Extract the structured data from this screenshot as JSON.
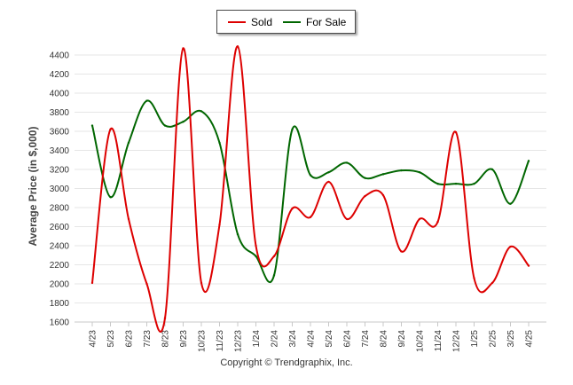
{
  "legend": {
    "sold_label": "Sold",
    "for_sale_label": "For Sale"
  },
  "footer": {
    "copyright": "Copyright © Trendgraphix, Inc."
  },
  "chart_data": {
    "type": "line",
    "title": "",
    "xlabel": "",
    "ylabel": "Average Price (in $,000)",
    "ylim": [
      1600,
      4500
    ],
    "yticks": [
      1600,
      1800,
      2000,
      2200,
      2400,
      2600,
      2800,
      3000,
      3200,
      3400,
      3600,
      3800,
      4000,
      4200,
      4400
    ],
    "grid": true,
    "legend_position": "top-center",
    "categories": [
      "4/23",
      "5/23",
      "6/23",
      "7/23",
      "8/23",
      "9/23",
      "10/23",
      "11/23",
      "12/23",
      "1/24",
      "2/24",
      "3/24",
      "4/24",
      "5/24",
      "6/24",
      "7/24",
      "8/24",
      "9/24",
      "10/24",
      "11/24",
      "12/24",
      "1/25",
      "2/25",
      "3/25",
      "4/25"
    ],
    "series": [
      {
        "name": "Sold",
        "color": "#dd0000",
        "values": [
          2010,
          3620,
          2680,
          2000,
          1640,
          4470,
          2010,
          2620,
          4490,
          2400,
          2290,
          2790,
          2700,
          3070,
          2680,
          2920,
          2930,
          2340,
          2680,
          2650,
          3590,
          2060,
          2010,
          2390,
          2190
        ]
      },
      {
        "name": "For Sale",
        "color": "#006600",
        "values": [
          3660,
          2910,
          3480,
          3920,
          3660,
          3700,
          3810,
          3480,
          2520,
          2290,
          2090,
          3620,
          3140,
          3170,
          3270,
          3110,
          3150,
          3190,
          3170,
          3050,
          3050,
          3050,
          3200,
          2840,
          3290
        ]
      }
    ]
  }
}
